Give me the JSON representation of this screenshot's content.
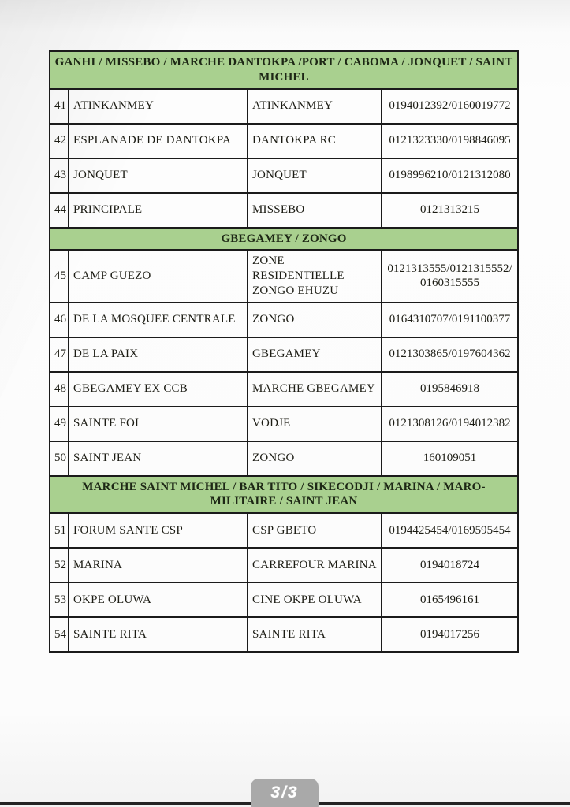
{
  "viewer": {
    "page_indicator": "3/3"
  },
  "colors": {
    "section_header_bg": "#a9d08f",
    "table_border": "#1b1b1b",
    "text": "#1c1c14",
    "badge_bg": "#a9a9a9",
    "badge_text": "#ffffff",
    "bottom_edge": "#232323"
  },
  "table": {
    "sections": [
      {
        "header": "GANHI / MISSEBO / MARCHE DANTOKPA /PORT / CABOMA / JONQUET / SAINT MICHEL",
        "rows": [
          {
            "number": "41",
            "name": "ATINKANMEY",
            "branch": "ATINKANMEY",
            "phones": "0194012392/0160019772"
          },
          {
            "number": "42",
            "name": "ESPLANADE DE DANTOKPA",
            "branch": "DANTOKPA RC",
            "phones": "0121323330/0198846095"
          },
          {
            "number": "43",
            "name": "JONQUET",
            "branch": "JONQUET",
            "phones": "0198996210/0121312080"
          },
          {
            "number": "44",
            "name": "PRINCIPALE",
            "branch": "MISSEBO",
            "phones": "0121313215"
          }
        ]
      },
      {
        "header": "GBEGAMEY / ZONGO",
        "rows": [
          {
            "number": "45",
            "name": "CAMP GUEZO",
            "branch": "ZONE RESIDENTIELLE ZONGO EHUZU",
            "phones": "0121313555/0121315552/0160315555"
          },
          {
            "number": "46",
            "name": "DE LA MOSQUEE CENTRALE",
            "branch": "ZONGO",
            "phones": "0164310707/0191100377"
          },
          {
            "number": "47",
            "name": "DE LA PAIX",
            "branch": "GBEGAMEY",
            "phones": "0121303865/0197604362"
          },
          {
            "number": "48",
            "name": "GBEGAMEY EX CCB",
            "branch": "MARCHE GBEGAMEY",
            "phones": "0195846918"
          },
          {
            "number": "49",
            "name": "SAINTE FOI",
            "branch": "VODJE",
            "phones": "0121308126/0194012382"
          },
          {
            "number": "50",
            "name": "SAINT JEAN",
            "branch": "ZONGO",
            "phones": "160109051"
          }
        ]
      },
      {
        "header": "MARCHE SAINT MICHEL / BAR TITO / SIKECODJI / MARINA / MARO-MILITAIRE / SAINT JEAN",
        "rows": [
          {
            "number": "51",
            "name": "FORUM SANTE CSP",
            "branch": "CSP GBETO",
            "phones": "0194425454/0169595454"
          },
          {
            "number": "52",
            "name": "MARINA",
            "branch": "CARREFOUR MARINA",
            "phones": "0194018724"
          },
          {
            "number": "53",
            "name": "OKPE OLUWA",
            "branch": "CINE OKPE OLUWA",
            "phones": "0165496161"
          },
          {
            "number": "54",
            "name": "SAINTE RITA",
            "branch": "SAINTE RITA",
            "phones": "0194017256"
          }
        ]
      }
    ]
  }
}
